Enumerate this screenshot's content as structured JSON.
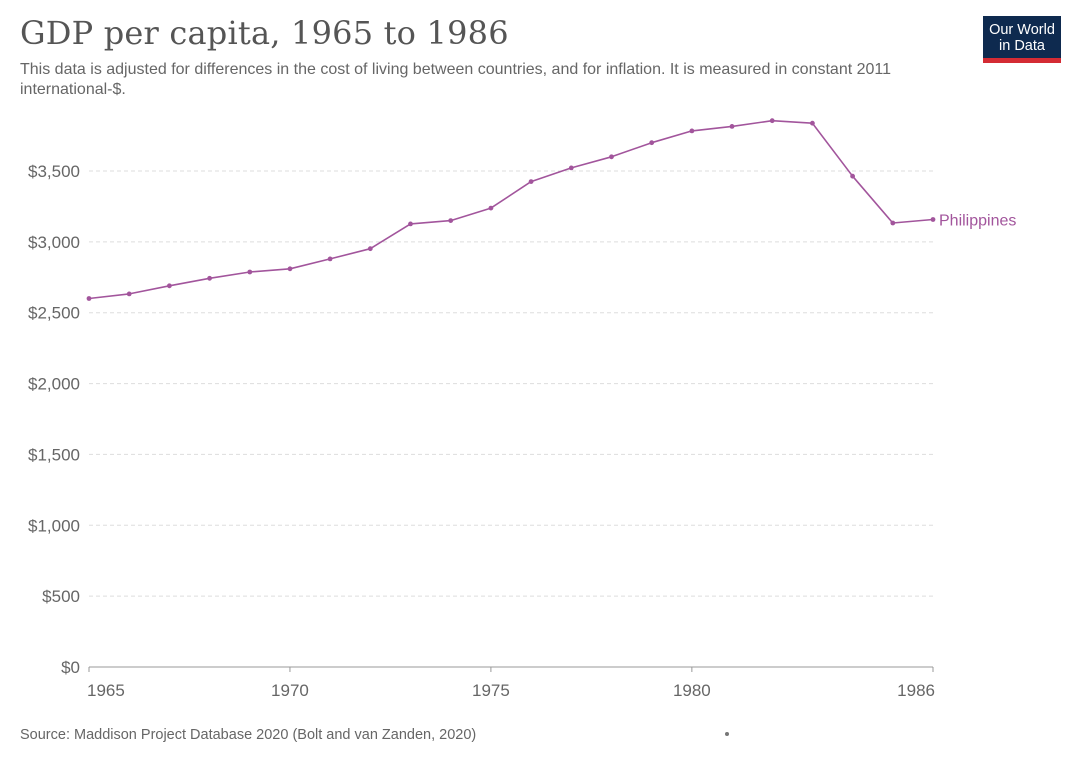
{
  "header": {
    "title": "GDP per capita, 1965 to 1986",
    "subtitle": "This data is adjusted for differences in the cost of living between countries, and for inflation. It is measured in constant 2011 international-$."
  },
  "logo": {
    "line1": "Our World",
    "line2": "in Data",
    "bg_color": "#0e2a4f",
    "accent_color": "#d42b34"
  },
  "footer": {
    "source": "Source: Maddison Project Database 2020 (Bolt and van Zanden, 2020)"
  },
  "chart_data": {
    "type": "line",
    "title": "GDP per capita, 1965 to 1986",
    "xlabel": "",
    "ylabel": "",
    "xlim": [
      1965,
      1986
    ],
    "ylim": [
      0,
      3900
    ],
    "y_ticks": [
      0,
      500,
      1000,
      1500,
      2000,
      2500,
      3000,
      3500
    ],
    "y_tick_labels": [
      "$0",
      "$500",
      "$1,000",
      "$1,500",
      "$2,000",
      "$2,500",
      "$3,000",
      "$3,500"
    ],
    "x_ticks": [
      1965,
      1970,
      1975,
      1980,
      1986
    ],
    "x_tick_labels": [
      "1965",
      "1970",
      "1975",
      "1980",
      "1986"
    ],
    "grid": "horizontal dashed",
    "series": [
      {
        "name": "Philippines",
        "color": "#a2559c",
        "x": [
          1965,
          1966,
          1967,
          1968,
          1969,
          1970,
          1971,
          1972,
          1973,
          1974,
          1975,
          1976,
          1977,
          1978,
          1979,
          1980,
          1981,
          1982,
          1983,
          1984,
          1985,
          1986
        ],
        "values": [
          2600,
          2633,
          2690,
          2743,
          2787,
          2810,
          2880,
          2952,
          3127,
          3150,
          3238,
          3425,
          3522,
          3600,
          3700,
          3783,
          3815,
          3855,
          3837,
          3463,
          3133,
          3158
        ]
      }
    ]
  }
}
